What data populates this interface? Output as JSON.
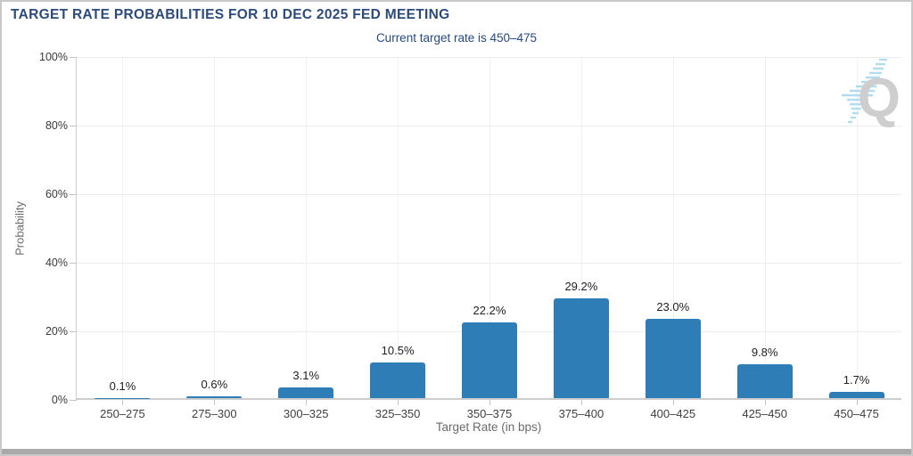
{
  "header": {
    "title": "TARGET RATE PROBABILITIES FOR 10 DEC 2025 FED MEETING",
    "subtitle": "Current target rate is 450–475"
  },
  "watermark": {
    "letter": "Q"
  },
  "colors": {
    "title_navy": "#2c4a7c",
    "subtitle_navy": "#27497f",
    "bar_blue": "#2e7db7",
    "stripe_blue": "#a8d9ef",
    "grid_gray": "#ececec",
    "axis_gray": "#cccccc"
  },
  "chart_data": {
    "type": "bar",
    "title": "TARGET RATE PROBABILITIES FOR 10 DEC 2025 FED MEETING",
    "subtitle": "Current target rate is 450–475",
    "categories": [
      "250–275",
      "275–300",
      "300–325",
      "325–350",
      "350–375",
      "375–400",
      "400–425",
      "425–450",
      "450–475"
    ],
    "values": [
      0.1,
      0.6,
      3.1,
      10.5,
      22.2,
      29.2,
      23.0,
      9.8,
      1.7
    ],
    "value_labels": [
      "0.1%",
      "0.6%",
      "3.1%",
      "10.5%",
      "22.2%",
      "29.2%",
      "23.0%",
      "9.8%",
      "1.7%"
    ],
    "xlabel": "Target Rate (in bps)",
    "ylabel": "Probability",
    "ylim": [
      0,
      100
    ],
    "yticks": [
      0,
      20,
      40,
      60,
      80,
      100
    ],
    "ytick_labels": [
      "0%",
      "20%",
      "40%",
      "60%",
      "80%",
      "100%"
    ],
    "grid": true,
    "legend": false
  }
}
